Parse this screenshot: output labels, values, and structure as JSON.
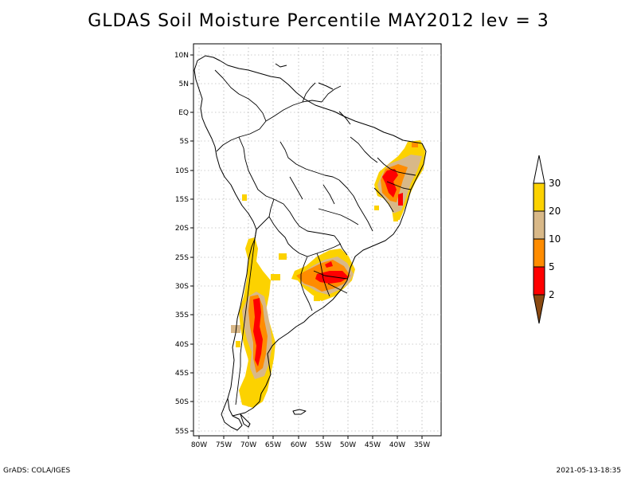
{
  "title": "GLDAS Soil Moisture Percentile MAY2012 lev = 3",
  "footer": {
    "left": "GrADS: COLA/IGES",
    "right": "2021-05-13-18:35"
  },
  "map": {
    "lat_labels": [
      "10N",
      "5N",
      "EQ",
      "5S",
      "10S",
      "15S",
      "20S",
      "25S",
      "30S",
      "35S",
      "40S",
      "45S",
      "50S",
      "55S"
    ],
    "lon_labels": [
      "80W",
      "75W",
      "70W",
      "65W",
      "60W",
      "55W",
      "50W",
      "45W",
      "40W",
      "35W"
    ],
    "lat_range": [
      -55.7,
      10.8
    ],
    "lon_range": [
      -81,
      -30.5
    ],
    "grid": true
  },
  "colorbar": {
    "labels": [
      "30",
      "20",
      "10",
      "5",
      "2"
    ],
    "colors": {
      "above_30": "#ffffff",
      "20_30": "#fcd200",
      "10_20": "#d8b888",
      "5_10": "#ff8c00",
      "2_5": "#ff0000",
      "below_2": "#8b4a12"
    }
  }
}
